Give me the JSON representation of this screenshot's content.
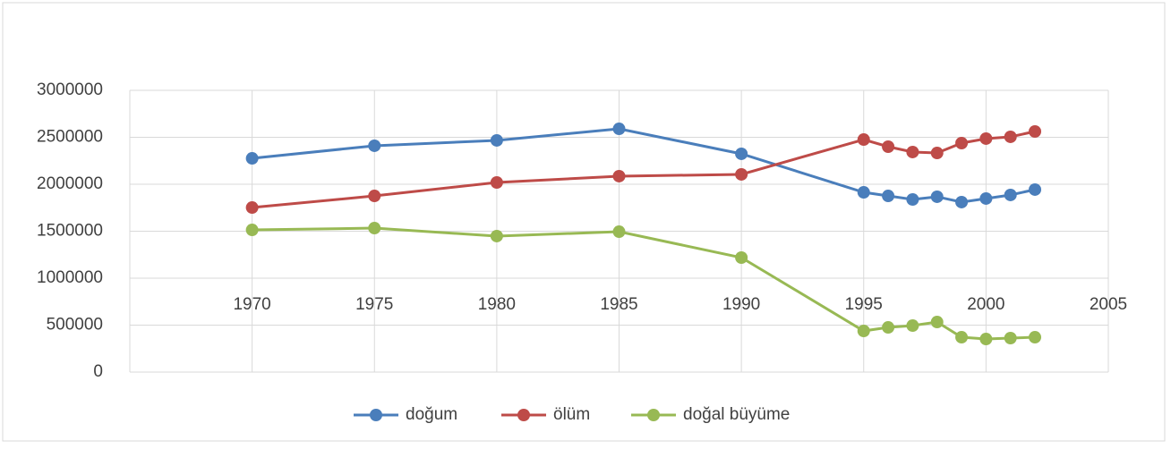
{
  "chart_data": {
    "type": "line",
    "x": [
      1970,
      1975,
      1980,
      1985,
      1990,
      1995,
      1996,
      1997,
      1998,
      1999,
      2000,
      2001,
      2002
    ],
    "series": [
      {
        "name": "doğum",
        "color": "#4a7ebb",
        "values": [
          2276000,
          2410000,
          2467000,
          2590000,
          2324000,
          1914000,
          1876000,
          1838000,
          1867000,
          1810000,
          1848000,
          1886000,
          1943000
        ]
      },
      {
        "name": "ölüm",
        "color": "#be4b48",
        "values": [
          1752000,
          1876000,
          2019000,
          2086000,
          2105000,
          2476000,
          2400000,
          2343000,
          2333000,
          2438000,
          2486000,
          2505000,
          2562000
        ]
      },
      {
        "name": "doğal büyüme",
        "color": "#98b954",
        "values": [
          1514000,
          1533000,
          1448000,
          1495000,
          1219000,
          438000,
          476000,
          495000,
          533000,
          371000,
          352000,
          362000,
          371000
        ]
      }
    ],
    "xlim": [
      1965,
      2005
    ],
    "xticks": [
      1970,
      1975,
      1980,
      1985,
      1990,
      1995,
      2000,
      2005
    ],
    "ylim": [
      0,
      3000000
    ],
    "yticks": [
      0,
      500000,
      1000000,
      1500000,
      2000000,
      2500000,
      3000000
    ],
    "grid": true,
    "legend": "bottom"
  }
}
